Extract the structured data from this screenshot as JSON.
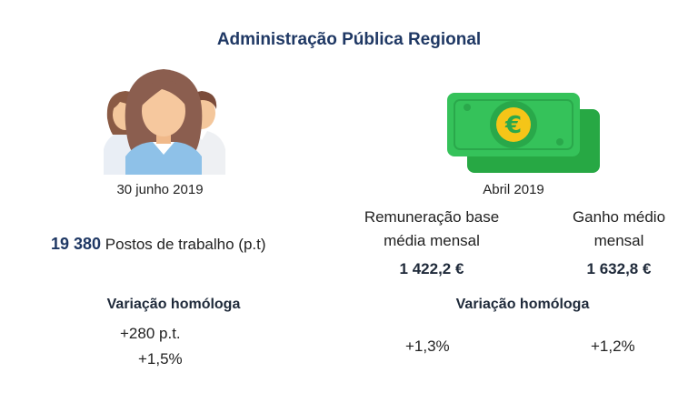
{
  "title": "Administração Pública Regional",
  "icons": {
    "people": "people-group-icon",
    "money": "euro-banknote-icon"
  },
  "colors": {
    "title": "#1f3864",
    "banknote": "#2eb84c",
    "euro_coin": "#f5c518"
  },
  "left": {
    "date": "30 junho 2019",
    "jobs_value": "19 380",
    "jobs_label": "Postos de trabalho (p.t)",
    "variation_header": "Variação homóloga",
    "variation_abs": "+280 p.t.",
    "variation_pct": "+1,5%"
  },
  "right": {
    "date": "Abril 2019",
    "base_pay_label_line1": "Remuneração base",
    "base_pay_label_line2": "média mensal",
    "earnings_label_line1": "Ganho médio",
    "earnings_label_line2": "mensal",
    "base_pay_value": "1 422,2 €",
    "earnings_value": "1 632,8 €",
    "variation_header": "Variação homóloga",
    "base_pay_variation": "+1,3%",
    "earnings_variation": "+1,2%"
  }
}
